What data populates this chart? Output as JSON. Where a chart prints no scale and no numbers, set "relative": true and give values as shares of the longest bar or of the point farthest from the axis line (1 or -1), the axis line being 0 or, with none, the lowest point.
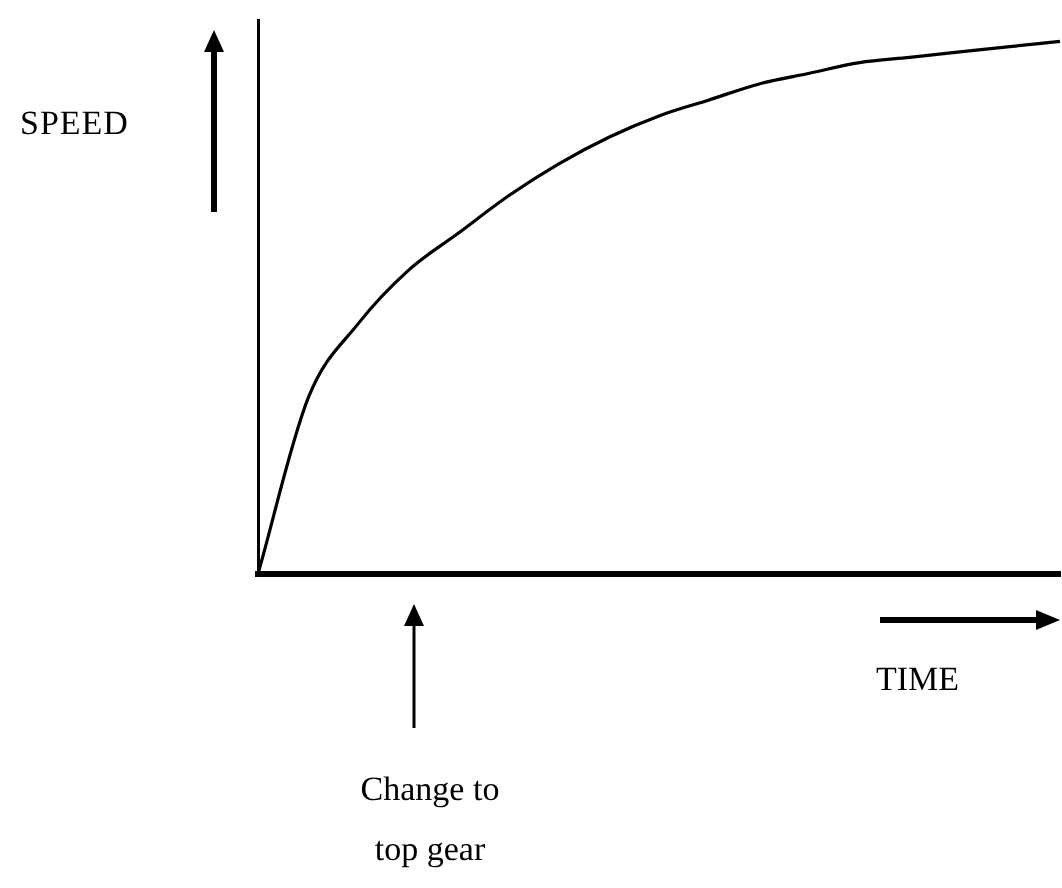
{
  "chart_data": {
    "type": "line",
    "relative": true,
    "xlabel": "TIME",
    "ylabel": "SPEED",
    "annotations": [
      "Change to top gear"
    ],
    "categories": [
      null,
      null,
      null,
      null,
      null,
      null,
      null,
      null,
      null,
      null,
      null,
      null,
      null,
      null,
      null,
      null,
      null
    ],
    "series": [
      {
        "color": "#000000",
        "values": [
          0,
          0.33,
          0.47,
          0.57,
          0.64,
          0.71,
          0.77,
          0.82,
          0.86,
          0.89,
          0.92,
          0.94,
          0.96,
          0.97,
          0.98,
          0.99,
          1
        ]
      }
    ],
    "marker": "none",
    "legend": false,
    "grid": false,
    "tick_labels": false
  }
}
